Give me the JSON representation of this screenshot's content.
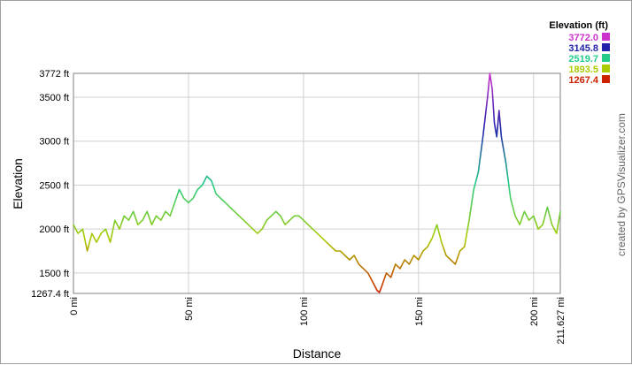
{
  "chart_data": {
    "type": "line",
    "xlabel": "Distance",
    "ylabel": "Elevation",
    "xlim": [
      0,
      211.627
    ],
    "ylim": [
      1267.4,
      3772
    ],
    "x_ticks": [
      {
        "value": 0,
        "label": "0 mi"
      },
      {
        "value": 50,
        "label": "50 mi"
      },
      {
        "value": 100,
        "label": "100 mi"
      },
      {
        "value": 150,
        "label": "150 mi"
      },
      {
        "value": 200,
        "label": "200 mi"
      },
      {
        "value": 211.627,
        "label": "211.627 mi"
      }
    ],
    "y_ticks": [
      {
        "value": 1267.4,
        "label": "1267.4 ft"
      },
      {
        "value": 1500,
        "label": "1500 ft"
      },
      {
        "value": 2000,
        "label": "2000 ft"
      },
      {
        "value": 2500,
        "label": "2500 ft"
      },
      {
        "value": 3000,
        "label": "3000 ft"
      },
      {
        "value": 3500,
        "label": "3500 ft"
      },
      {
        "value": 3772,
        "label": "3772 ft"
      }
    ],
    "grid": true,
    "legend": {
      "title": "Elevation (ft)",
      "placement": "top-right",
      "entries": [
        {
          "label": "3772.0",
          "color": "#cc33cc"
        },
        {
          "label": "3145.8",
          "color": "#2222aa"
        },
        {
          "label": "2519.7",
          "color": "#22cc88"
        },
        {
          "label": "1893.5",
          "color": "#aacc00"
        },
        {
          "label": "1267.4",
          "color": "#cc2200"
        }
      ]
    },
    "credit": "created by GPSVisualizer.com",
    "series": [
      {
        "x": [
          0,
          2,
          4,
          6,
          8,
          10,
          12,
          14,
          16,
          18,
          20,
          22,
          24,
          26,
          28,
          30,
          32,
          34,
          36,
          38,
          40,
          42,
          44,
          46,
          48,
          50,
          52,
          54,
          56,
          58,
          60,
          62,
          64,
          66,
          68,
          70,
          72,
          74,
          76,
          78,
          80,
          82,
          84,
          86,
          88,
          90,
          92,
          94,
          96,
          98,
          100,
          102,
          104,
          106,
          108,
          110,
          112,
          114,
          116,
          118,
          120,
          122,
          124,
          126,
          128,
          130,
          132,
          133,
          134,
          136,
          138,
          140,
          142,
          144,
          146,
          148,
          150,
          152,
          154,
          156,
          158,
          160,
          162,
          164,
          166,
          168,
          170,
          172,
          174,
          176,
          178,
          180,
          181,
          182,
          183,
          184,
          185,
          186,
          188,
          190,
          192,
          194,
          196,
          198,
          200,
          202,
          204,
          206,
          208,
          210,
          211.627
        ],
        "y": [
          2050,
          1950,
          2000,
          1750,
          1950,
          1850,
          1950,
          2000,
          1850,
          2100,
          2000,
          2150,
          2100,
          2200,
          2050,
          2100,
          2200,
          2050,
          2150,
          2100,
          2200,
          2150,
          2300,
          2450,
          2350,
          2300,
          2350,
          2450,
          2500,
          2600,
          2550,
          2400,
          2350,
          2300,
          2250,
          2200,
          2150,
          2100,
          2050,
          2000,
          1950,
          2000,
          2100,
          2150,
          2200,
          2150,
          2050,
          2100,
          2150,
          2150,
          2100,
          2050,
          2000,
          1950,
          1900,
          1850,
          1800,
          1750,
          1750,
          1700,
          1650,
          1700,
          1600,
          1550,
          1500,
          1400,
          1300,
          1280,
          1350,
          1500,
          1450,
          1600,
          1550,
          1650,
          1600,
          1700,
          1650,
          1750,
          1800,
          1900,
          2050,
          1850,
          1700,
          1650,
          1600,
          1750,
          1800,
          2100,
          2450,
          2650,
          3050,
          3500,
          3772,
          3600,
          3200,
          3050,
          3350,
          3050,
          2750,
          2350,
          2150,
          2050,
          2200,
          2100,
          2150,
          2000,
          2050,
          2250,
          2050,
          1950,
          2200
        ]
      }
    ]
  }
}
